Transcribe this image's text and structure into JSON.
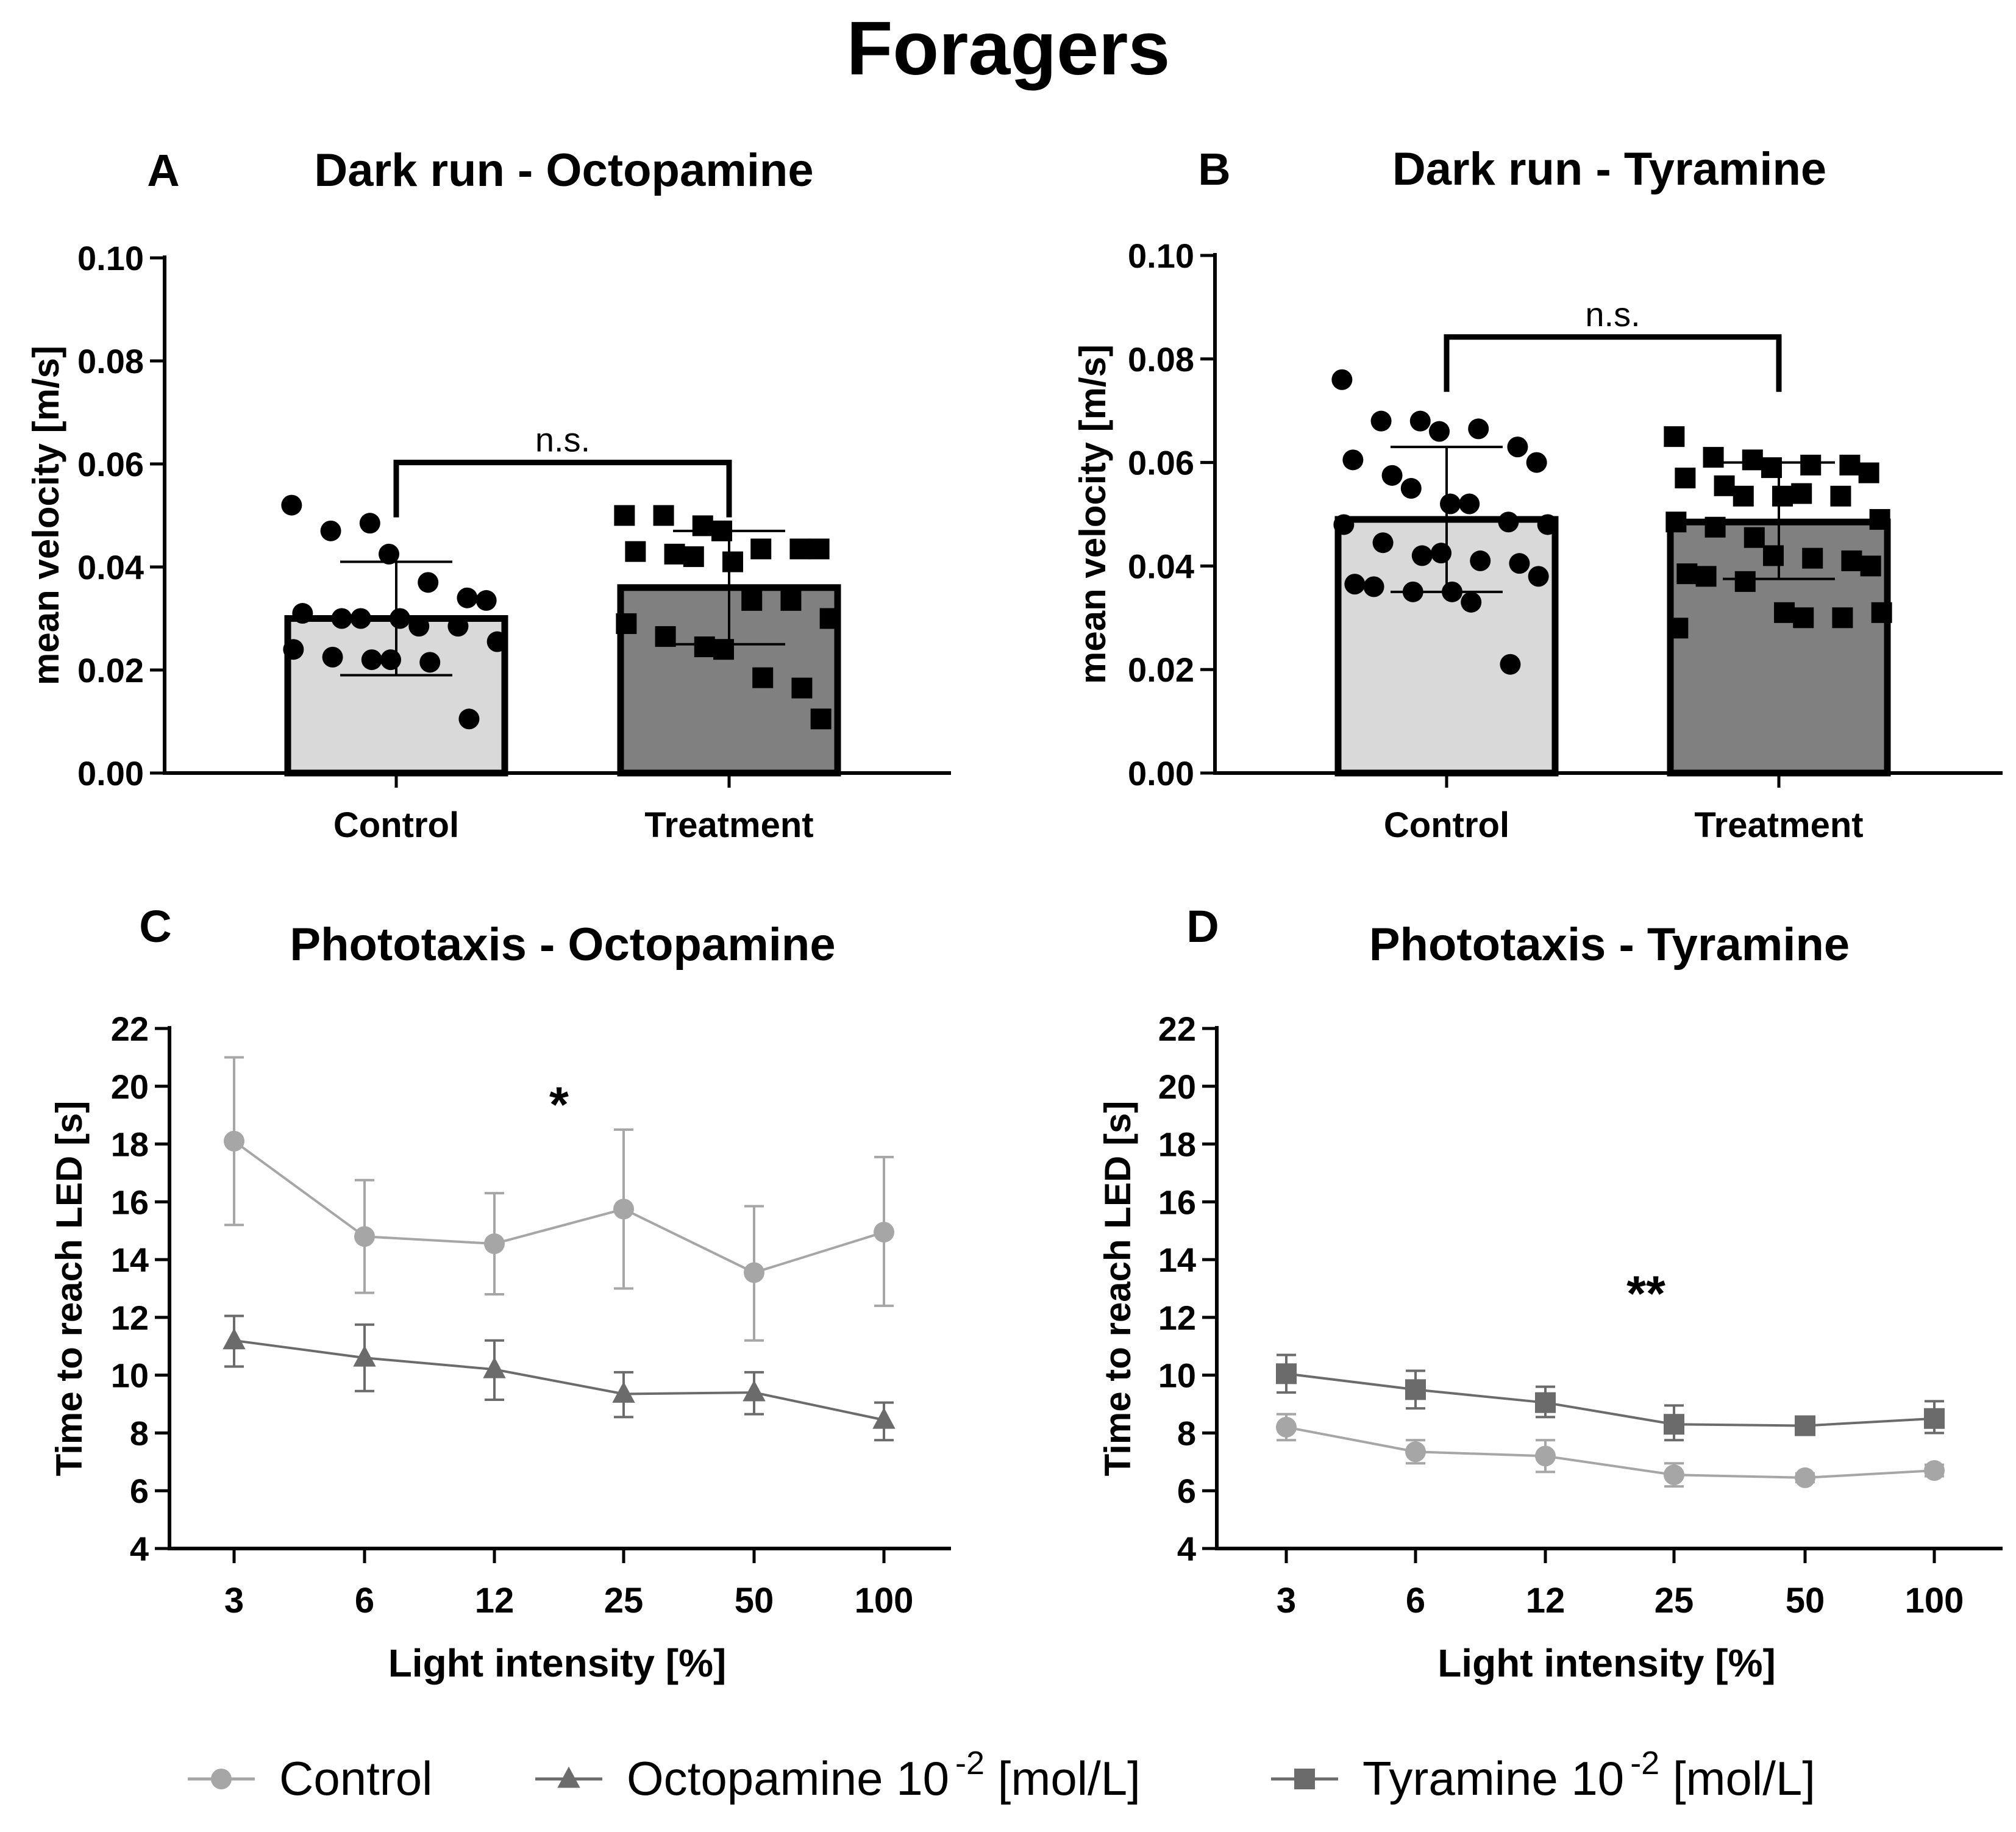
{
  "figure_title": "Foragers",
  "legend": [
    {
      "label": "Control",
      "sup": "",
      "unit": "",
      "marker": "circle",
      "color": "#a6a6a6"
    },
    {
      "label": "Octopamine 10",
      "sup": "-2",
      "unit": " [mol/L]",
      "marker": "triangle",
      "color": "#6b6b6b"
    },
    {
      "label": "Tyramine 10",
      "sup": "-2",
      "unit": " [mol/L]",
      "marker": "square",
      "color": "#6b6b6b"
    }
  ],
  "colors": {
    "control_bar": "#d9d9d9",
    "treatment_bar": "#808080",
    "control_line": "#a6a6a6",
    "drug_line": "#6b6b6b",
    "ink": "#000000"
  },
  "chart_data": [
    {
      "panel": "A",
      "type": "bar",
      "title": "Dark run - Octopamine",
      "ylabel": "mean velocity [m/s]",
      "xlabel": "",
      "ylim": [
        0,
        0.1
      ],
      "yticks": [
        "0.00",
        "0.02",
        "0.04",
        "0.06",
        "0.08",
        "0.10"
      ],
      "categories": [
        "Control",
        "Treatment"
      ],
      "values": [
        0.03,
        0.036
      ],
      "sd_low": [
        0.019,
        0.025
      ],
      "sd_high": [
        0.041,
        0.047
      ],
      "significance": "n.s.",
      "points": [
        [
          0.052,
          0.047,
          0.0485,
          0.0425,
          0.037,
          0.034,
          0.0335,
          0.031,
          0.03,
          0.03,
          0.03,
          0.0285,
          0.0285,
          0.0255,
          0.024,
          0.0225,
          0.022,
          0.022,
          0.0215,
          0.0105
        ],
        [
          0.05,
          0.05,
          0.048,
          0.047,
          0.0435,
          0.0435,
          0.0435,
          0.043,
          0.0425,
          0.042,
          0.041,
          0.0335,
          0.0335,
          0.03,
          0.029,
          0.0265,
          0.0245,
          0.024,
          0.0185,
          0.0165,
          0.0105
        ]
      ]
    },
    {
      "panel": "B",
      "type": "bar",
      "title": "Dark run - Tyramine",
      "ylabel": "mean velocity [m/s]",
      "xlabel": "",
      "ylim": [
        0,
        0.1
      ],
      "yticks": [
        "0.00",
        "0.02",
        "0.04",
        "0.06",
        "0.08",
        "0.10"
      ],
      "categories": [
        "Control",
        "Treatment"
      ],
      "values": [
        0.049,
        0.0485
      ],
      "sd_low": [
        0.035,
        0.0375
      ],
      "sd_high": [
        0.063,
        0.06
      ],
      "significance": "n.s.",
      "points": [
        [
          0.076,
          0.068,
          0.068,
          0.066,
          0.0665,
          0.063,
          0.06,
          0.0605,
          0.0575,
          0.055,
          0.052,
          0.052,
          0.0485,
          0.048,
          0.048,
          0.0445,
          0.042,
          0.0425,
          0.041,
          0.0405,
          0.038,
          0.0365,
          0.036,
          0.035,
          0.035,
          0.033,
          0.021
        ],
        [
          0.065,
          0.061,
          0.0605,
          0.059,
          0.0595,
          0.0595,
          0.058,
          0.057,
          0.0555,
          0.0535,
          0.0535,
          0.054,
          0.0535,
          0.049,
          0.0485,
          0.0475,
          0.0455,
          0.042,
          0.0415,
          0.041,
          0.04,
          0.0385,
          0.038,
          0.037,
          0.031,
          0.03,
          0.03,
          0.031,
          0.028
        ]
      ]
    },
    {
      "panel": "C",
      "type": "line",
      "title": "Phototaxis - Octopamine",
      "ylabel": "Time to reach LED [s]",
      "xlabel": "Light intensity [%]",
      "ylim": [
        4,
        22
      ],
      "yticks": [
        "4",
        "6",
        "8",
        "10",
        "12",
        "14",
        "16",
        "18",
        "20",
        "22"
      ],
      "categories": [
        "3",
        "6",
        "12",
        "25",
        "50",
        "100"
      ],
      "significance": "*",
      "series": [
        {
          "name": "Control",
          "marker": "circle",
          "values": [
            18.1,
            14.8,
            14.55,
            15.75,
            13.55,
            14.95
          ],
          "err_low": [
            15.2,
            12.85,
            12.8,
            13.0,
            11.2,
            12.4
          ],
          "err_high": [
            21.0,
            16.75,
            16.3,
            18.5,
            15.85,
            17.55
          ]
        },
        {
          "name": "Octopamine 10-2 [mol/L]",
          "marker": "triangle",
          "values": [
            11.2,
            10.6,
            10.2,
            9.35,
            9.4,
            8.45
          ],
          "err_low": [
            10.3,
            9.45,
            9.15,
            8.55,
            8.65,
            7.75
          ],
          "err_high": [
            12.05,
            11.75,
            11.2,
            10.1,
            10.1,
            9.05
          ]
        }
      ]
    },
    {
      "panel": "D",
      "type": "line",
      "title": "Phototaxis - Tyramine",
      "ylabel": "Time to reach LED [s]",
      "xlabel": "Light intensity [%]",
      "ylim": [
        4,
        22
      ],
      "yticks": [
        "4",
        "6",
        "8",
        "10",
        "12",
        "14",
        "16",
        "18",
        "20",
        "22"
      ],
      "categories": [
        "3",
        "6",
        "12",
        "25",
        "50",
        "100"
      ],
      "significance": "**",
      "series": [
        {
          "name": "Control",
          "marker": "circle",
          "values": [
            8.2,
            7.35,
            7.2,
            6.55,
            6.45,
            6.7
          ],
          "err_low": [
            7.75,
            6.95,
            6.65,
            6.15,
            6.3,
            6.5
          ],
          "err_high": [
            8.65,
            7.75,
            7.75,
            6.95,
            6.6,
            6.9
          ]
        },
        {
          "name": "Tyramine 10-2 [mol/L]",
          "marker": "square",
          "values": [
            10.05,
            9.5,
            9.05,
            8.3,
            8.25,
            8.5
          ],
          "err_low": [
            9.4,
            8.85,
            8.55,
            7.75,
            8.05,
            8.0
          ],
          "err_high": [
            10.7,
            10.15,
            9.6,
            8.95,
            8.45,
            9.1
          ]
        }
      ]
    }
  ]
}
